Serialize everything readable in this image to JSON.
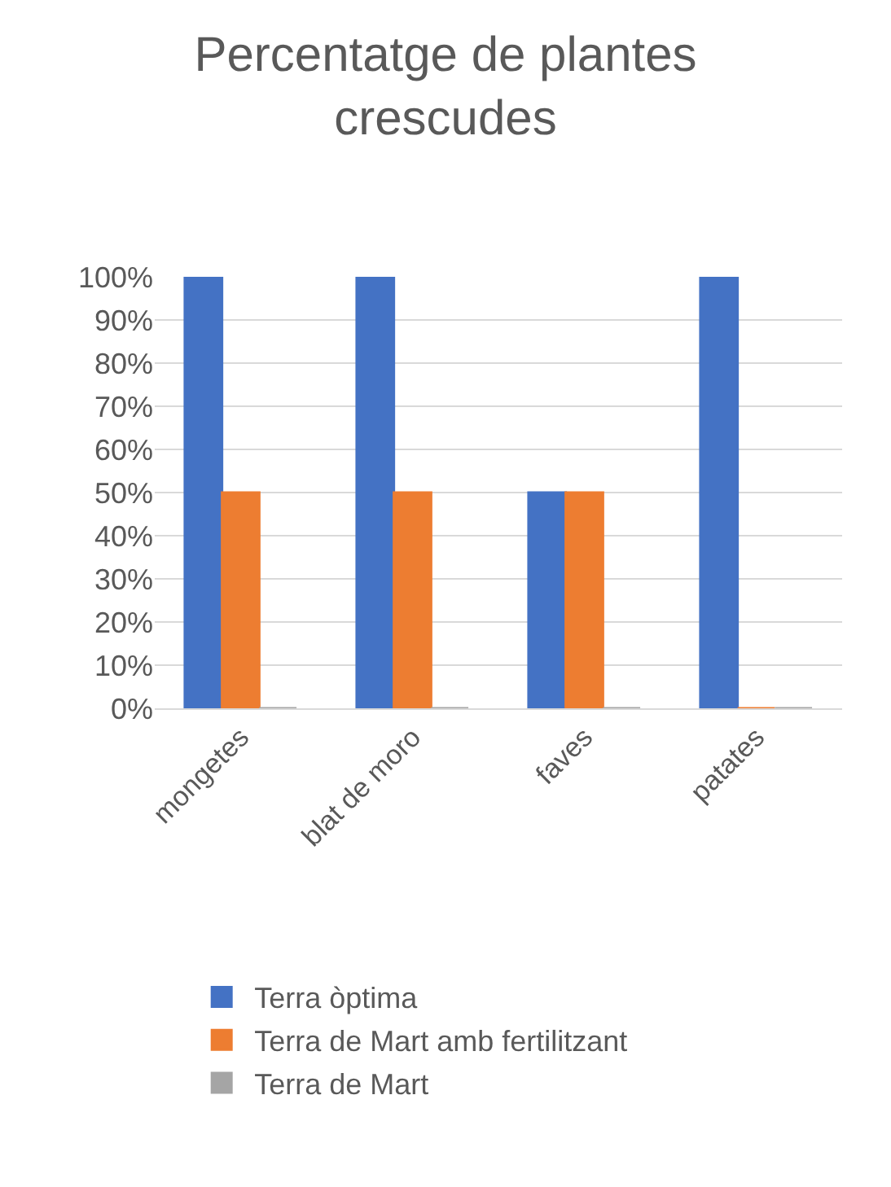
{
  "chart_data": {
    "type": "bar",
    "title": "Percentatge de plantes crescudes",
    "categories": [
      "mongetes",
      "blat de moro",
      "faves",
      "patates"
    ],
    "series": [
      {
        "name": "Terra òptima",
        "color": "#4472c4",
        "values": [
          100,
          100,
          50,
          100
        ]
      },
      {
        "name": "Terra de Mart amb fertilitzant",
        "color": "#ed7d31",
        "values": [
          50,
          50,
          50,
          0
        ]
      },
      {
        "name": "Terra de Mart",
        "color": "#a5a5a5",
        "values": [
          0,
          0,
          0,
          0
        ]
      }
    ],
    "ylim": [
      0,
      100
    ],
    "yticks": [
      {
        "value": 0,
        "label": "0%"
      },
      {
        "value": 10,
        "label": "10%"
      },
      {
        "value": 20,
        "label": "20%"
      },
      {
        "value": 30,
        "label": "30%"
      },
      {
        "value": 40,
        "label": "40%"
      },
      {
        "value": 50,
        "label": "50%"
      },
      {
        "value": 60,
        "label": "60%"
      },
      {
        "value": 70,
        "label": "70%"
      },
      {
        "value": 80,
        "label": "80%"
      },
      {
        "value": 90,
        "label": "90%"
      },
      {
        "value": 100,
        "label": "100%"
      }
    ],
    "grid": "y",
    "legend": "bottom"
  }
}
